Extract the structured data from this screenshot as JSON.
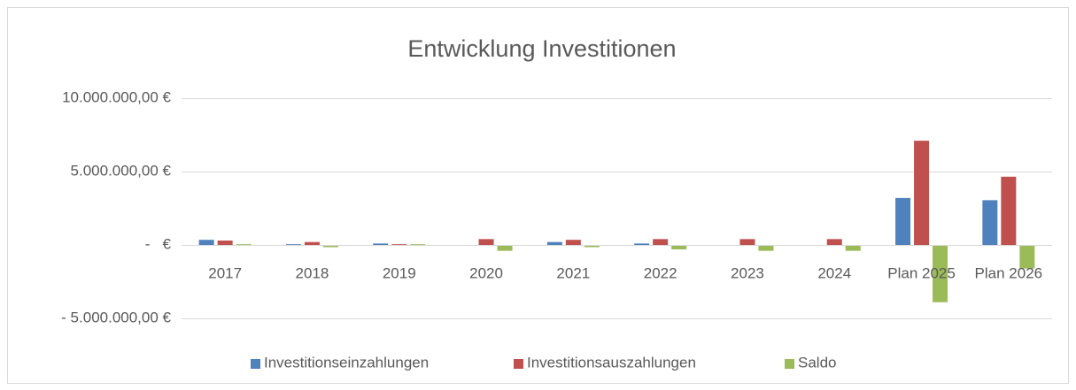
{
  "chart_data": {
    "type": "bar",
    "title": "Entwicklung Investitionen",
    "categories": [
      "2017",
      "2018",
      "2019",
      "2020",
      "2021",
      "2022",
      "2023",
      "2024",
      "Plan 2025",
      "Plan 2026"
    ],
    "series": [
      {
        "name": "Investitionseinzahlungen",
        "color": "#4f81bd",
        "values": [
          350000,
          50000,
          100000,
          0,
          200000,
          100000,
          0,
          0,
          3200000,
          3050000
        ]
      },
      {
        "name": "Investitionsauszahlungen",
        "color": "#c0504d",
        "values": [
          300000,
          200000,
          50000,
          400000,
          350000,
          400000,
          400000,
          400000,
          7100000,
          4650000
        ]
      },
      {
        "name": "Saldo",
        "color": "#9bbb59",
        "values": [
          50000,
          -150000,
          50000,
          -400000,
          -150000,
          -300000,
          -400000,
          -400000,
          -3900000,
          -1600000
        ]
      }
    ],
    "ylim": [
      -5000000,
      10000000
    ],
    "yticks": [
      {
        "value": -5000000,
        "label": "- 5.000.000,00 €"
      },
      {
        "value": 0,
        "label": "-   €"
      },
      {
        "value": 5000000,
        "label": "5.000.000,00 €"
      },
      {
        "value": 10000000,
        "label": "10.000.000,00 €"
      }
    ],
    "grid": true,
    "legend": "bottom"
  }
}
